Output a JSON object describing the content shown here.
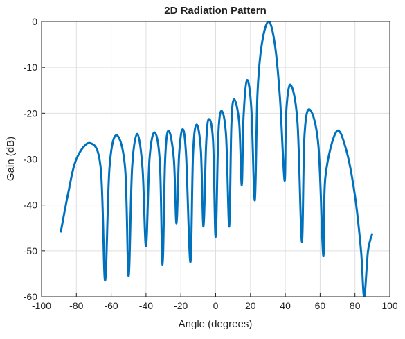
{
  "chart_data": {
    "type": "line",
    "title": "2D Radiation Pattern",
    "xlabel": "Angle (degrees)",
    "ylabel": "Gain (dB)",
    "x": [
      -89,
      -85,
      -80,
      -72,
      -66,
      -63.5,
      -61,
      -57,
      -52,
      -50,
      -48,
      -45,
      -42,
      -40,
      -38,
      -35,
      -32,
      -30.5,
      -29,
      -27,
      -24,
      -22.5,
      -21,
      -19,
      -17,
      -14.5,
      -13,
      -11,
      -8.5,
      -7,
      -5.5,
      -4,
      -1.5,
      0,
      1.5,
      3.4,
      6,
      7.8,
      9,
      10.5,
      13.5,
      15,
      16,
      18,
      20.5,
      22.5,
      24,
      26.5,
      30.4,
      34,
      37,
      39.6,
      40.5,
      43,
      47,
      49.5,
      51,
      54,
      59,
      61.8,
      63,
      69.4,
      75,
      80,
      83.5,
      85.3,
      87.5,
      90
    ],
    "series": [
      {
        "name": "Gain",
        "color": "#0072bd",
        "values": [
          -46,
          -38,
          -30,
          -26.5,
          -32,
          -56.5,
          -32,
          -24.8,
          -32,
          -55.5,
          -32,
          -24.5,
          -32,
          -49,
          -30,
          -24.2,
          -31,
          -53,
          -30,
          -23.8,
          -30,
          -44,
          -29,
          -23.5,
          -29,
          -52.5,
          -29,
          -22.5,
          -28,
          -44.7,
          -27,
          -21.3,
          -26,
          -47,
          -25,
          -19.5,
          -25,
          -44.7,
          -23,
          -17,
          -22,
          -35.7,
          -21,
          -12.8,
          -19,
          -39,
          -16,
          -5,
          0,
          -5,
          -17,
          -34.7,
          -20,
          -13.8,
          -22,
          -48,
          -25,
          -19.2,
          -27,
          -51,
          -34,
          -24,
          -28,
          -38,
          -50,
          -60,
          -50,
          -46.2
        ]
      }
    ],
    "xlim": [
      -100,
      100
    ],
    "xticks": [
      -100,
      -80,
      -60,
      -40,
      -20,
      0,
      20,
      40,
      60,
      80,
      100
    ],
    "ylim": [
      -60,
      0
    ],
    "yticks": [
      -60,
      -50,
      -40,
      -30,
      -20,
      -10,
      0
    ],
    "grid": true
  }
}
